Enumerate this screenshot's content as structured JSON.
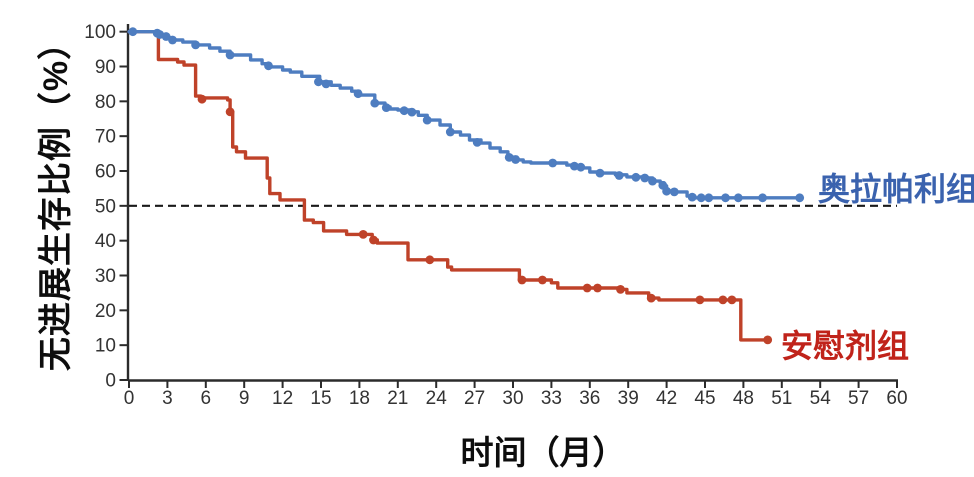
{
  "figure": {
    "y_axis_title": "无进展生存比例（%）",
    "x_axis_title": "时间（月）",
    "legend": {
      "olaparib_label": "奥拉帕利组",
      "placebo_label": "安慰剂组"
    },
    "colors": {
      "olaparib_line": "#4e7dc0",
      "olaparib_label": "#3a62ae",
      "placebo_line": "#bf4229",
      "placebo_label": "#c0231a",
      "axis": "#2b2b2b",
      "tick_text": "#333333",
      "reference_line": "#1a1a1a",
      "background": "#ffffff"
    }
  },
  "chart_data": {
    "type": "line",
    "subtype": "kaplan-meier-step",
    "title": "",
    "xlabel": "时间（月）",
    "ylabel": "无进展生存比例（%）",
    "xlim": [
      0,
      60
    ],
    "ylim": [
      0,
      100
    ],
    "x_ticks": [
      0,
      3,
      6,
      9,
      12,
      15,
      18,
      21,
      24,
      27,
      30,
      33,
      36,
      39,
      42,
      45,
      48,
      51,
      54,
      57,
      60
    ],
    "y_ticks": [
      0,
      10,
      20,
      30,
      40,
      50,
      60,
      70,
      80,
      90,
      100
    ],
    "grid": false,
    "reference_line_y": 50,
    "legend_position": "inline-right-of-curves",
    "series": [
      {
        "name": "奥拉帕利组",
        "color": "#4e7dc0",
        "points": [
          [
            0,
            100
          ],
          [
            2.0,
            100
          ],
          [
            2.2,
            99.4
          ],
          [
            2.5,
            99.0
          ],
          [
            2.8,
            98.6
          ],
          [
            3.1,
            98.2
          ],
          [
            3.4,
            97.6
          ],
          [
            4.2,
            97.0
          ],
          [
            5.2,
            96.2
          ],
          [
            6.3,
            95.3
          ],
          [
            7.1,
            94.4
          ],
          [
            7.9,
            93.3
          ],
          [
            9.5,
            91.9
          ],
          [
            10.4,
            90.8
          ],
          [
            11.0,
            89.9
          ],
          [
            12.0,
            89.0
          ],
          [
            12.6,
            88.4
          ],
          [
            13.5,
            87.2
          ],
          [
            14.9,
            85.6
          ],
          [
            15.8,
            84.6
          ],
          [
            16.5,
            83.8
          ],
          [
            17.4,
            82.9
          ],
          [
            18.0,
            81.8
          ],
          [
            19.2,
            79.5
          ],
          [
            20.0,
            78.4
          ],
          [
            20.4,
            77.8
          ],
          [
            21.0,
            77.5
          ],
          [
            22.0,
            77.0
          ],
          [
            22.6,
            76.0
          ],
          [
            23.3,
            74.6
          ],
          [
            24.3,
            73.2
          ],
          [
            25.1,
            71.2
          ],
          [
            25.9,
            70.3
          ],
          [
            26.6,
            68.9
          ],
          [
            27.5,
            68.0
          ],
          [
            28.2,
            66.6
          ],
          [
            29.0,
            65.5
          ],
          [
            29.6,
            64.0
          ],
          [
            30.3,
            63.2
          ],
          [
            30.8,
            62.6
          ],
          [
            31.4,
            62.3
          ],
          [
            34.2,
            61.7
          ],
          [
            35.0,
            61.2
          ],
          [
            35.5,
            60.9
          ],
          [
            36.0,
            59.7
          ],
          [
            36.6,
            59.4
          ],
          [
            38.0,
            58.9
          ],
          [
            38.9,
            58.3
          ],
          [
            40.2,
            58.0
          ],
          [
            40.9,
            57.1
          ],
          [
            41.5,
            56.6
          ],
          [
            41.8,
            55.7
          ],
          [
            42.0,
            54.3
          ],
          [
            42.5,
            54.0
          ],
          [
            43.6,
            52.8
          ],
          [
            44.2,
            52.3
          ],
          [
            52.4,
            52.3
          ]
        ],
        "markers": [
          [
            0.3,
            100
          ],
          [
            2.2,
            99.6
          ],
          [
            2.4,
            99.2
          ],
          [
            2.9,
            98.6
          ],
          [
            3.4,
            97.6
          ],
          [
            5.2,
            96.2
          ],
          [
            7.9,
            93.3
          ],
          [
            10.9,
            90.2
          ],
          [
            14.8,
            85.6
          ],
          [
            15.4,
            85.0
          ],
          [
            17.9,
            82.2
          ],
          [
            19.2,
            79.5
          ],
          [
            20.1,
            78.2
          ],
          [
            21.5,
            77.3
          ],
          [
            22.1,
            76.9
          ],
          [
            23.3,
            74.6
          ],
          [
            25.1,
            71.2
          ],
          [
            27.2,
            68.2
          ],
          [
            29.7,
            63.9
          ],
          [
            30.2,
            63.3
          ],
          [
            33.1,
            62.3
          ],
          [
            34.8,
            61.4
          ],
          [
            35.3,
            61.1
          ],
          [
            36.8,
            59.4
          ],
          [
            38.3,
            58.7
          ],
          [
            39.6,
            58.2
          ],
          [
            40.3,
            58.0
          ],
          [
            40.9,
            57.1
          ],
          [
            41.7,
            55.9
          ],
          [
            42.0,
            54.2
          ],
          [
            42.6,
            54.0
          ],
          [
            44.0,
            52.5
          ],
          [
            44.7,
            52.3
          ],
          [
            45.3,
            52.3
          ],
          [
            46.6,
            52.3
          ],
          [
            47.6,
            52.3
          ],
          [
            49.5,
            52.3
          ],
          [
            52.4,
            52.3
          ]
        ]
      },
      {
        "name": "安慰剂组",
        "color": "#bf4229",
        "points": [
          [
            0,
            100
          ],
          [
            2.2,
            100
          ],
          [
            2.3,
            92.0
          ],
          [
            3.8,
            91.3
          ],
          [
            4.3,
            90.4
          ],
          [
            5.1,
            90.4
          ],
          [
            5.2,
            81.5
          ],
          [
            5.6,
            81.0
          ],
          [
            7.7,
            80.4
          ],
          [
            7.9,
            77.0
          ],
          [
            8.1,
            66.9
          ],
          [
            8.4,
            65.5
          ],
          [
            9.1,
            63.7
          ],
          [
            10.6,
            63.7
          ],
          [
            10.8,
            58.0
          ],
          [
            11.0,
            53.5
          ],
          [
            11.8,
            51.7
          ],
          [
            13.6,
            51.7
          ],
          [
            13.7,
            45.9
          ],
          [
            14.4,
            45.2
          ],
          [
            15.2,
            42.8
          ],
          [
            17.0,
            41.8
          ],
          [
            19.0,
            40.2
          ],
          [
            19.4,
            39.3
          ],
          [
            21.4,
            39.3
          ],
          [
            21.8,
            34.5
          ],
          [
            24.7,
            34.5
          ],
          [
            24.9,
            32.4
          ],
          [
            25.2,
            31.6
          ],
          [
            30.0,
            31.6
          ],
          [
            30.5,
            28.7
          ],
          [
            32.8,
            28.7
          ],
          [
            33.0,
            27.9
          ],
          [
            33.5,
            26.4
          ],
          [
            38.4,
            26.0
          ],
          [
            38.9,
            25.0
          ],
          [
            40.6,
            23.5
          ],
          [
            41.4,
            23.0
          ],
          [
            47.7,
            23.0
          ],
          [
            47.8,
            11.5
          ],
          [
            49.9,
            11.5
          ]
        ],
        "markers": [
          [
            5.7,
            80.6
          ],
          [
            7.9,
            77.0
          ],
          [
            18.3,
            41.8
          ],
          [
            19.1,
            40.2
          ],
          [
            23.5,
            34.5
          ],
          [
            30.7,
            28.7
          ],
          [
            32.3,
            28.7
          ],
          [
            35.8,
            26.4
          ],
          [
            36.6,
            26.4
          ],
          [
            38.4,
            26.0
          ],
          [
            40.8,
            23.5
          ],
          [
            44.6,
            23.0
          ],
          [
            46.4,
            23.0
          ],
          [
            47.1,
            23.0
          ],
          [
            49.9,
            11.5
          ]
        ]
      }
    ]
  }
}
